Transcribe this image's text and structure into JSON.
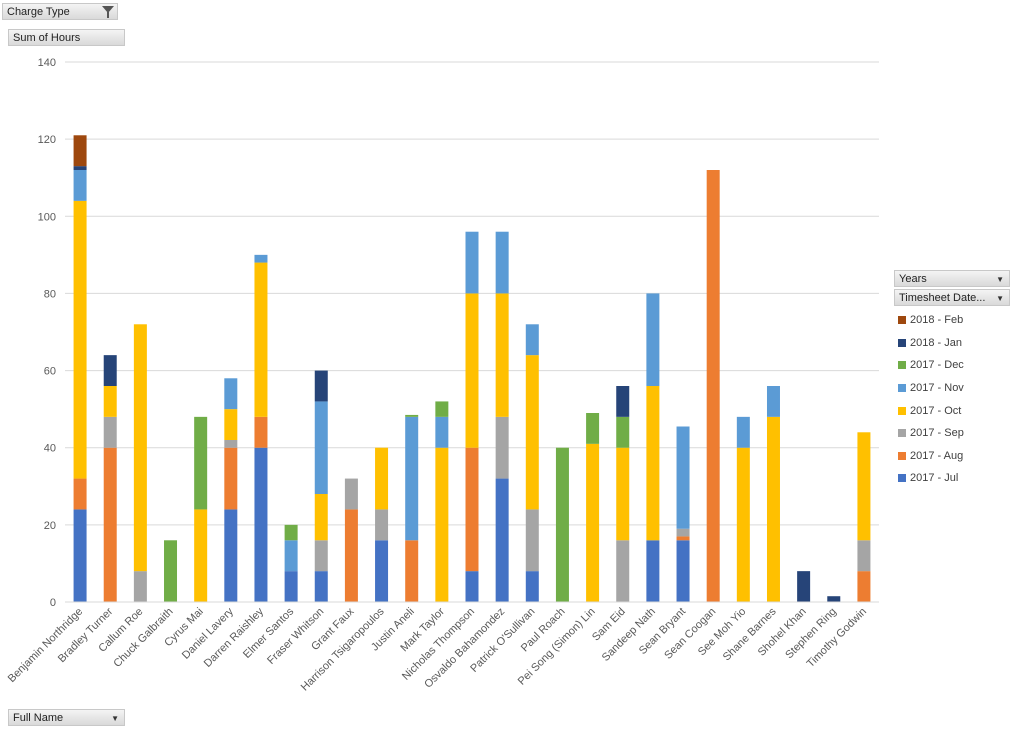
{
  "buttons": {
    "charge_type": "Charge Type",
    "sum_of_hours": "Sum of Hours",
    "full_name": "Full Name",
    "years": "Years",
    "timesheet_date": "Timesheet Date..."
  },
  "chart_data": {
    "type": "bar",
    "stacked": true,
    "ylim": [
      0,
      140
    ],
    "yticks": [
      0,
      20,
      40,
      60,
      80,
      100,
      120,
      140
    ],
    "grid": true,
    "legend_position": "right",
    "categories": [
      "Benjamin Northridge",
      "Bradley Turner",
      "Callum Roe",
      "Chuck Galbraith",
      "Cyrus Mai",
      "Daniel Lavery",
      "Darren Raishley",
      "Elmer Santos",
      "Fraser Whitson",
      "Grant Faux",
      "Harrison Tsigaropoulos",
      "Justin Aneli",
      "Mark Taylor",
      "Nicholas Thompson",
      "Osvaldo Bahamondez",
      "Patrick O'Sullivan",
      "Paul Roach",
      "Pei Song (Simon) Lin",
      "Sam Eid",
      "Sandeep Nath",
      "Sean Bryant",
      "Sean Coogan",
      "See Moh Yio",
      "Shane Barnes",
      "Shohel Khan",
      "Stephen Ring",
      "Timothy Godwin"
    ],
    "series": [
      {
        "name": "2017 - Jul",
        "color": "#4472c4",
        "values": [
          24,
          0,
          0,
          0,
          0,
          24,
          40,
          8,
          8,
          0,
          16,
          0,
          0,
          8,
          32,
          8,
          0,
          0,
          0,
          16,
          16,
          0,
          0,
          0,
          0,
          0,
          0
        ]
      },
      {
        "name": "2017 - Aug",
        "color": "#ed7d31",
        "values": [
          8,
          40,
          0,
          0,
          0,
          16,
          8,
          0,
          0,
          24,
          0,
          16,
          0,
          32,
          0,
          0,
          0,
          0,
          0,
          0,
          1,
          112,
          0,
          0,
          0,
          0,
          8
        ]
      },
      {
        "name": "2017 - Sep",
        "color": "#a5a5a5",
        "values": [
          0,
          8,
          8,
          0,
          0,
          2,
          0,
          0,
          8,
          8,
          8,
          0,
          0,
          0,
          16,
          16,
          0,
          0,
          16,
          0,
          2,
          0,
          0,
          0,
          0,
          0,
          8
        ]
      },
      {
        "name": "2017 - Oct",
        "color": "#ffc000",
        "values": [
          72,
          8,
          64,
          0,
          24,
          8,
          40,
          0,
          12,
          0,
          16,
          0,
          40,
          40,
          32,
          40,
          0,
          41,
          24,
          40,
          0,
          0,
          40,
          48,
          0,
          0,
          28
        ]
      },
      {
        "name": "2017 - Nov",
        "color": "#5b9bd5",
        "values": [
          8,
          0,
          0,
          0,
          0,
          8,
          2,
          8,
          24,
          0,
          0,
          32,
          8,
          16,
          16,
          8,
          0,
          0,
          0,
          24,
          26.5,
          0,
          8,
          8,
          0,
          0,
          0
        ]
      },
      {
        "name": "2017 - Dec",
        "color": "#70ad47",
        "values": [
          0,
          0,
          0,
          16,
          24,
          0,
          0,
          4,
          0,
          0,
          0,
          0.5,
          4,
          0,
          0,
          0,
          40,
          8,
          8,
          0,
          0,
          0,
          0,
          0,
          0,
          0,
          0
        ]
      },
      {
        "name": "2018 - Jan",
        "color": "#264478",
        "values": [
          1,
          8,
          0,
          0,
          0,
          0,
          0,
          0,
          8,
          0,
          0,
          0,
          0,
          0,
          0,
          0,
          0,
          0,
          8,
          0,
          0,
          0,
          0,
          0,
          8,
          1.5,
          0
        ]
      },
      {
        "name": "2018 - Feb",
        "color": "#9e480e",
        "values": [
          8,
          0,
          0,
          0,
          0,
          0,
          0,
          0,
          0,
          0,
          0,
          0,
          0,
          0,
          0,
          0,
          0,
          0,
          0,
          0,
          0,
          0,
          0,
          0,
          0,
          0,
          0
        ]
      }
    ],
    "legend_order": [
      "2018 - Feb",
      "2018 - Jan",
      "2017 - Dec",
      "2017 - Nov",
      "2017 - Oct",
      "2017 - Sep",
      "2017 - Aug",
      "2017 - Jul"
    ]
  }
}
